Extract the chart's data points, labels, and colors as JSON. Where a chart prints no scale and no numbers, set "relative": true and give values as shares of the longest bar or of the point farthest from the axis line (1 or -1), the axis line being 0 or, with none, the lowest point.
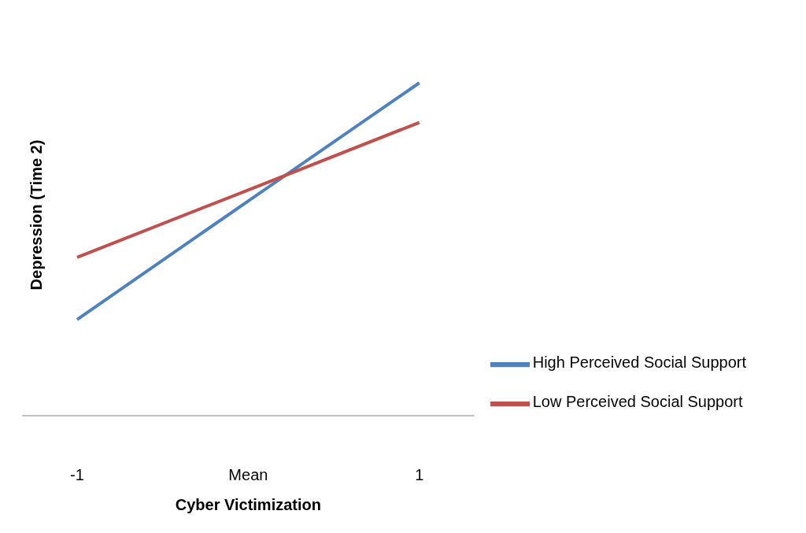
{
  "chart_data": {
    "type": "line",
    "relative": true,
    "xlabel": "Cyber Victimization",
    "ylabel": "Depression (Time 2)",
    "categories": [
      "-1",
      "Mean",
      "1"
    ],
    "series": [
      {
        "name": "High Perceived Social Support",
        "color": "#4f81bd",
        "values": [
          0.289,
          0.645,
          1
        ]
      },
      {
        "name": "Low Perceived Social Support",
        "color": "#c0504d",
        "values": [
          0.476,
          0.678,
          0.881
        ]
      }
    ],
    "legend": "bottom right",
    "grid": false
  }
}
